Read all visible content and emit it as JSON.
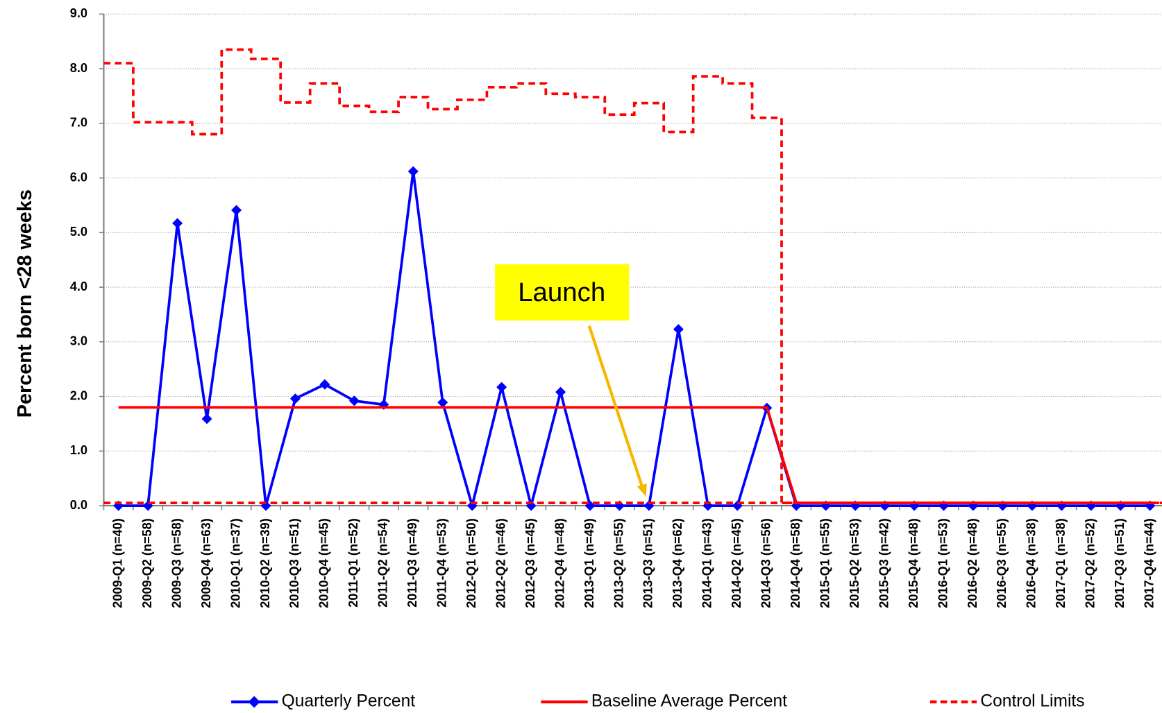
{
  "chart_data": {
    "type": "line",
    "y_label": "Percent born <28 weeks",
    "categories": [
      "2009-Q1 (n=40)",
      "2009-Q2 (n=58)",
      "2009-Q3 (n=58)",
      "2009-Q4 (n=63)",
      "2010-Q1 (n=37)",
      "2010-Q2 (n=39)",
      "2010-Q3 (n=51)",
      "2010-Q4 (n=45)",
      "2011-Q1 (n=52)",
      "2011-Q2 (n=54)",
      "2011-Q3 (n=49)",
      "2011-Q4 (n=53)",
      "2012-Q1 (n=50)",
      "2012-Q2 (n=46)",
      "2012-Q3 (n=45)",
      "2012-Q4 (n=48)",
      "2013-Q1 (n=49)",
      "2013-Q2 (n=55)",
      "2013-Q3 (n=51)",
      "2013-Q4 (n=62)",
      "2014-Q1 (n=43)",
      "2014-Q2 (n=45)",
      "2014-Q3 (n=56)",
      "2014-Q4 (n=58)",
      "2015-Q1 (n=55)",
      "2015-Q2 (n=53)",
      "2015-Q3 (n=42)",
      "2015-Q4 (n=48)",
      "2016-Q1 (n=53)",
      "2016-Q2 (n=48)",
      "2016-Q3 (n=55)",
      "2016-Q4 (n=38)",
      "2017-Q1 (n=38)",
      "2017-Q2 (n=52)",
      "2017-Q3 (n=51)",
      "2017-Q4 (n=44)"
    ],
    "series": [
      {
        "name": "Quarterly Percent",
        "color": "#0000ff",
        "style": "solid",
        "marker": "diamond",
        "values": [
          0,
          0,
          5.17,
          1.59,
          5.41,
          0,
          1.96,
          2.22,
          1.92,
          1.85,
          6.12,
          1.89,
          0,
          2.17,
          0,
          2.08,
          0,
          0,
          0,
          3.23,
          0,
          0,
          1.79,
          0,
          0,
          0,
          0,
          0,
          0,
          0,
          0,
          0,
          0,
          0,
          0,
          0
        ]
      },
      {
        "name": "Baseline Average Percent",
        "color": "#ff0000",
        "style": "solid",
        "values": [
          1.8,
          1.8,
          1.8,
          1.8,
          1.8,
          1.8,
          1.8,
          1.8,
          1.8,
          1.8,
          1.8,
          1.8,
          1.8,
          1.8,
          1.8,
          1.8,
          1.8,
          1.8,
          1.8,
          1.8,
          1.8,
          1.8,
          1.8,
          0.05,
          0.05,
          0.05,
          0.05,
          0.05,
          0.05,
          0.05,
          0.05,
          0.05,
          0.05,
          0.05,
          0.05,
          0.05
        ]
      },
      {
        "name": "Control Limits",
        "color": "#ff0000",
        "style": "dashed",
        "step": true,
        "values": [
          8.1,
          7.02,
          7.02,
          6.8,
          8.35,
          8.18,
          7.38,
          7.73,
          7.32,
          7.21,
          7.48,
          7.26,
          7.43,
          7.66,
          7.73,
          7.54,
          7.48,
          7.16,
          7.37,
          6.84,
          7.86,
          7.73,
          7.1,
          0.05,
          0.05,
          0.05,
          0.05,
          0.05,
          0.05,
          0.05,
          0.05,
          0.05,
          0.05,
          0.05,
          0.05,
          0.05
        ],
        "lower": [
          0.05,
          0.05,
          0.05,
          0.05,
          0.05,
          0.05,
          0.05,
          0.05,
          0.05,
          0.05,
          0.05,
          0.05,
          0.05,
          0.05,
          0.05,
          0.05,
          0.05,
          0.05,
          0.05,
          0.05,
          0.05,
          0.05,
          0.05,
          0.05,
          0.05,
          0.05,
          0.05,
          0.05,
          0.05,
          0.05,
          0.05,
          0.05,
          0.05,
          0.05,
          0.05,
          0.05
        ]
      }
    ],
    "ylim": [
      0,
      9
    ],
    "yticks": [
      {
        "value": 0,
        "label": "0.0"
      },
      {
        "value": 1,
        "label": "1.0"
      },
      {
        "value": 2,
        "label": "2.0"
      },
      {
        "value": 3,
        "label": "3.0"
      },
      {
        "value": 4,
        "label": "4.0"
      },
      {
        "value": 5,
        "label": "5.0"
      },
      {
        "value": 6,
        "label": "6.0"
      },
      {
        "value": 7,
        "label": "7.0"
      },
      {
        "value": 8,
        "label": "8.0"
      },
      {
        "value": 9,
        "label": "9.0"
      }
    ],
    "grid": true,
    "legend": "bottom",
    "annotations": [
      {
        "text": "Launch",
        "category": 18,
        "value": 0,
        "color": "#ffff00",
        "arrow_color": "#f5b800"
      }
    ]
  }
}
